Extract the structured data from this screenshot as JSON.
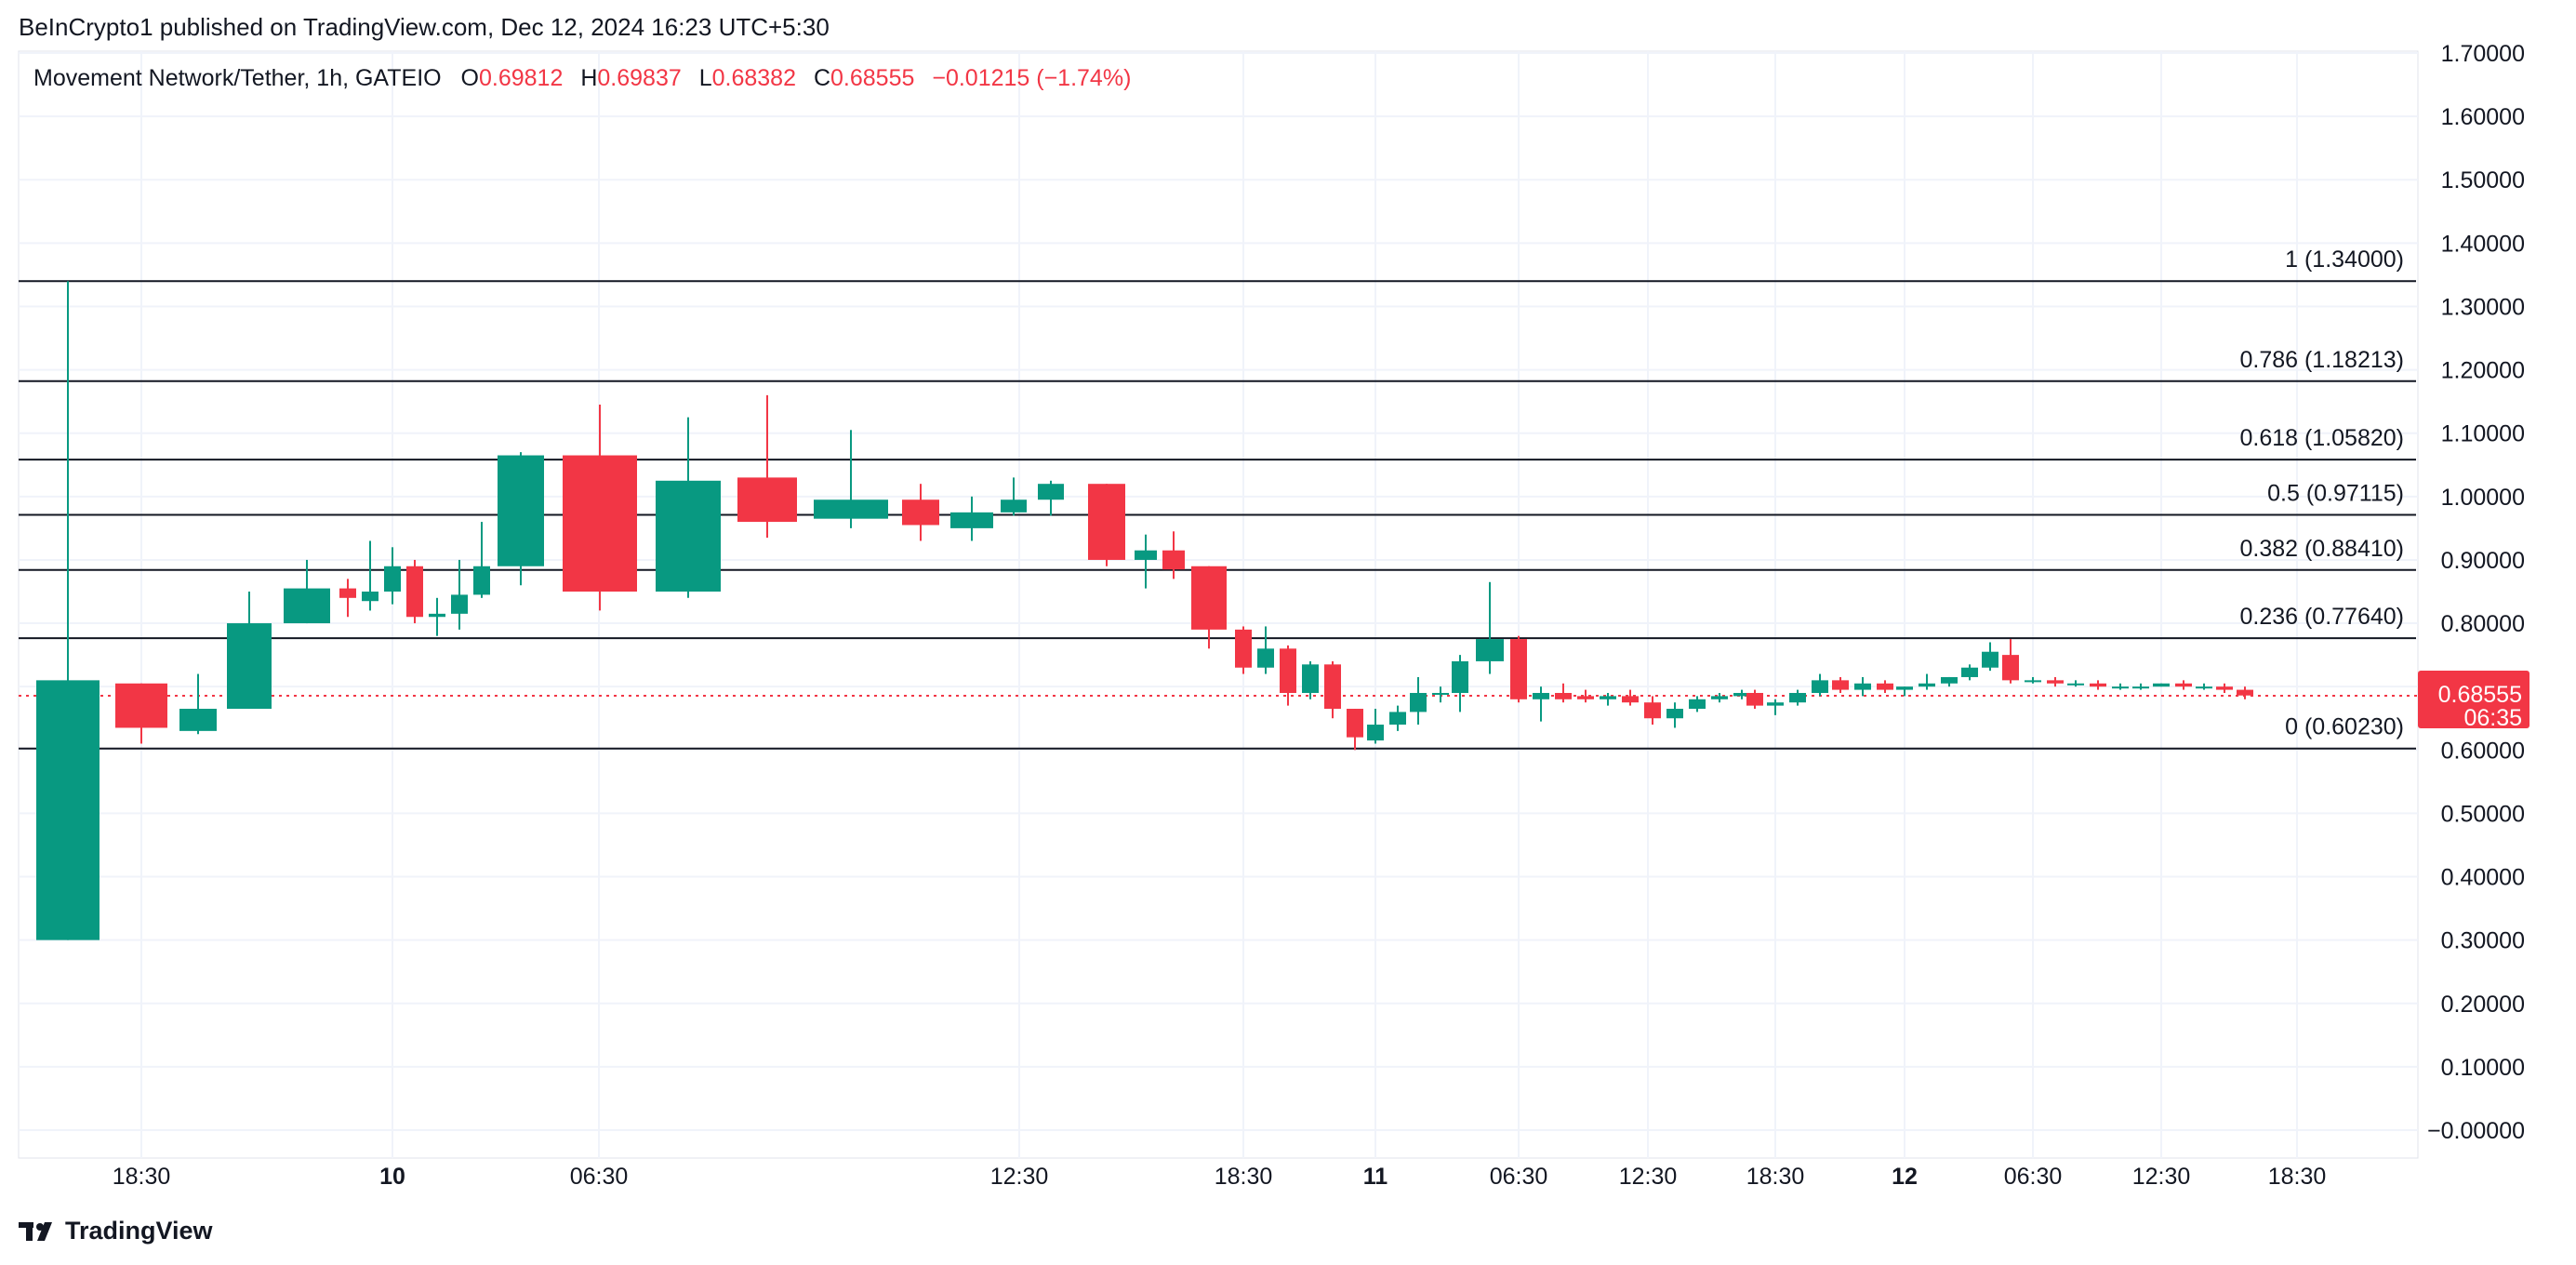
{
  "header": {
    "publisher": "BeInCrypto1 published on TradingView.com, Dec 12, 2024 16:23 UTC+5:30"
  },
  "legend": {
    "symbol": "Movement Network/Tether, 1h, GATEIO",
    "open_label": "O",
    "open": "0.69812",
    "high_label": "H",
    "high": "0.69837",
    "low_label": "L",
    "low": "0.68382",
    "close_label": "C",
    "close": "0.68555",
    "change": "−0.01215 (−1.74%)"
  },
  "price_tag": {
    "value": "0.68555",
    "countdown": "06:35"
  },
  "brand": {
    "name": "TradingView"
  },
  "colors": {
    "up": "#089981",
    "down": "#f23645",
    "fib_line": "#131722",
    "grid": "#f0f3fa"
  },
  "chart_data": {
    "type": "candlestick",
    "interval": "1h",
    "ylim": [
      0,
      1.7
    ],
    "y_ticks": [
      "1.70000",
      "1.60000",
      "1.50000",
      "1.40000",
      "1.30000",
      "1.20000",
      "1.10000",
      "1.00000",
      "0.90000",
      "0.80000",
      "0.70000",
      "0.60000",
      "0.50000",
      "0.40000",
      "0.30000",
      "0.20000",
      "0.10000",
      "−0.00000"
    ],
    "x_ticks": [
      "18:30",
      "10",
      "06:30",
      "12:30",
      "18:30",
      "11",
      "06:30",
      "12:30",
      "18:30",
      "12",
      "06:30",
      "12:30",
      "18:30"
    ],
    "x_tick_bold": [
      false,
      true,
      false,
      false,
      false,
      true,
      false,
      false,
      false,
      true,
      false,
      false,
      false
    ],
    "fib_levels": [
      {
        "label": "1 (1.34000)",
        "price": 1.34
      },
      {
        "label": "0.786 (1.18213)",
        "price": 1.18213
      },
      {
        "label": "0.618 (1.05820)",
        "price": 1.0582
      },
      {
        "label": "0.5 (0.97115)",
        "price": 0.97115
      },
      {
        "label": "0.382 (0.88410)",
        "price": 0.8841
      },
      {
        "label": "0.236 (0.77640)",
        "price": 0.7764
      },
      {
        "label": "0 (0.60230)",
        "price": 0.6023
      }
    ],
    "current_price": 0.68555,
    "candles": [
      {
        "o": 0.3,
        "h": 1.34,
        "l": 0.3,
        "c": 0.71
      },
      {
        "o": 0.705,
        "h": 0.705,
        "l": 0.61,
        "c": 0.635
      },
      {
        "o": 0.63,
        "h": 0.72,
        "l": 0.625,
        "c": 0.665
      },
      {
        "o": 0.665,
        "h": 0.85,
        "l": 0.665,
        "c": 0.8
      },
      {
        "o": 0.8,
        "h": 0.9,
        "l": 0.8,
        "c": 0.855
      },
      {
        "o": 0.855,
        "h": 0.87,
        "l": 0.81,
        "c": 0.84
      },
      {
        "o": 0.835,
        "h": 0.93,
        "l": 0.82,
        "c": 0.85
      },
      {
        "o": 0.85,
        "h": 0.92,
        "l": 0.83,
        "c": 0.89
      },
      {
        "o": 0.89,
        "h": 0.9,
        "l": 0.8,
        "c": 0.81
      },
      {
        "o": 0.81,
        "h": 0.84,
        "l": 0.78,
        "c": 0.815
      },
      {
        "o": 0.815,
        "h": 0.9,
        "l": 0.79,
        "c": 0.845
      },
      {
        "o": 0.845,
        "h": 0.96,
        "l": 0.84,
        "c": 0.89
      },
      {
        "o": 0.89,
        "h": 1.07,
        "l": 0.86,
        "c": 1.065
      },
      {
        "o": 1.065,
        "h": 1.145,
        "l": 0.82,
        "c": 0.85
      },
      {
        "o": 0.85,
        "h": 1.125,
        "l": 0.84,
        "c": 1.025
      },
      {
        "o": 1.03,
        "h": 1.16,
        "l": 0.935,
        "c": 0.96
      },
      {
        "o": 0.965,
        "h": 1.105,
        "l": 0.95,
        "c": 0.995
      },
      {
        "o": 0.995,
        "h": 1.02,
        "l": 0.93,
        "c": 0.955
      },
      {
        "o": 0.95,
        "h": 1.0,
        "l": 0.93,
        "c": 0.975
      },
      {
        "o": 0.975,
        "h": 1.03,
        "l": 0.97,
        "c": 0.995
      },
      {
        "o": 0.995,
        "h": 1.025,
        "l": 0.97,
        "c": 1.02
      },
      {
        "o": 1.02,
        "h": 1.02,
        "l": 0.89,
        "c": 0.9
      },
      {
        "o": 0.9,
        "h": 0.94,
        "l": 0.855,
        "c": 0.915
      },
      {
        "o": 0.915,
        "h": 0.945,
        "l": 0.87,
        "c": 0.885
      },
      {
        "o": 0.89,
        "h": 0.89,
        "l": 0.76,
        "c": 0.79
      },
      {
        "o": 0.79,
        "h": 0.795,
        "l": 0.72,
        "c": 0.73
      },
      {
        "o": 0.73,
        "h": 0.795,
        "l": 0.72,
        "c": 0.76
      },
      {
        "o": 0.76,
        "h": 0.765,
        "l": 0.67,
        "c": 0.69
      },
      {
        "o": 0.69,
        "h": 0.74,
        "l": 0.68,
        "c": 0.735
      },
      {
        "o": 0.735,
        "h": 0.74,
        "l": 0.65,
        "c": 0.665
      },
      {
        "o": 0.665,
        "h": 0.665,
        "l": 0.6,
        "c": 0.62
      },
      {
        "o": 0.615,
        "h": 0.665,
        "l": 0.61,
        "c": 0.64
      },
      {
        "o": 0.64,
        "h": 0.67,
        "l": 0.63,
        "c": 0.66
      },
      {
        "o": 0.66,
        "h": 0.715,
        "l": 0.64,
        "c": 0.69
      },
      {
        "o": 0.69,
        "h": 0.7,
        "l": 0.675,
        "c": 0.69
      },
      {
        "o": 0.69,
        "h": 0.75,
        "l": 0.66,
        "c": 0.74
      },
      {
        "o": 0.74,
        "h": 0.865,
        "l": 0.72,
        "c": 0.775
      },
      {
        "o": 0.775,
        "h": 0.78,
        "l": 0.675,
        "c": 0.68
      },
      {
        "o": 0.68,
        "h": 0.7,
        "l": 0.645,
        "c": 0.69
      },
      {
        "o": 0.69,
        "h": 0.705,
        "l": 0.675,
        "c": 0.68
      },
      {
        "o": 0.685,
        "h": 0.695,
        "l": 0.675,
        "c": 0.68
      },
      {
        "o": 0.68,
        "h": 0.69,
        "l": 0.67,
        "c": 0.685
      },
      {
        "o": 0.685,
        "h": 0.695,
        "l": 0.67,
        "c": 0.675
      },
      {
        "o": 0.675,
        "h": 0.685,
        "l": 0.64,
        "c": 0.65
      },
      {
        "o": 0.65,
        "h": 0.675,
        "l": 0.635,
        "c": 0.665
      },
      {
        "o": 0.665,
        "h": 0.685,
        "l": 0.66,
        "c": 0.68
      },
      {
        "o": 0.68,
        "h": 0.69,
        "l": 0.675,
        "c": 0.685
      },
      {
        "o": 0.685,
        "h": 0.695,
        "l": 0.68,
        "c": 0.69
      },
      {
        "o": 0.69,
        "h": 0.695,
        "l": 0.665,
        "c": 0.67
      },
      {
        "o": 0.67,
        "h": 0.68,
        "l": 0.655,
        "c": 0.675
      },
      {
        "o": 0.675,
        "h": 0.695,
        "l": 0.67,
        "c": 0.69
      },
      {
        "o": 0.69,
        "h": 0.72,
        "l": 0.685,
        "c": 0.71
      },
      {
        "o": 0.71,
        "h": 0.715,
        "l": 0.69,
        "c": 0.695
      },
      {
        "o": 0.695,
        "h": 0.715,
        "l": 0.685,
        "c": 0.705
      },
      {
        "o": 0.705,
        "h": 0.71,
        "l": 0.69,
        "c": 0.695
      },
      {
        "o": 0.695,
        "h": 0.7,
        "l": 0.685,
        "c": 0.7
      },
      {
        "o": 0.7,
        "h": 0.72,
        "l": 0.695,
        "c": 0.705
      },
      {
        "o": 0.705,
        "h": 0.715,
        "l": 0.7,
        "c": 0.715
      },
      {
        "o": 0.715,
        "h": 0.735,
        "l": 0.71,
        "c": 0.73
      },
      {
        "o": 0.73,
        "h": 0.77,
        "l": 0.725,
        "c": 0.755
      },
      {
        "o": 0.75,
        "h": 0.775,
        "l": 0.705,
        "c": 0.71
      },
      {
        "o": 0.71,
        "h": 0.715,
        "l": 0.705,
        "c": 0.71
      },
      {
        "o": 0.71,
        "h": 0.715,
        "l": 0.7,
        "c": 0.705
      },
      {
        "o": 0.705,
        "h": 0.71,
        "l": 0.7,
        "c": 0.705
      },
      {
        "o": 0.705,
        "h": 0.71,
        "l": 0.695,
        "c": 0.7
      },
      {
        "o": 0.7,
        "h": 0.705,
        "l": 0.695,
        "c": 0.7
      },
      {
        "o": 0.7,
        "h": 0.705,
        "l": 0.695,
        "c": 0.7
      },
      {
        "o": 0.7,
        "h": 0.705,
        "l": 0.7,
        "c": 0.705
      },
      {
        "o": 0.705,
        "h": 0.71,
        "l": 0.695,
        "c": 0.7
      },
      {
        "o": 0.7,
        "h": 0.705,
        "l": 0.695,
        "c": 0.7
      },
      {
        "o": 0.7,
        "h": 0.705,
        "l": 0.69,
        "c": 0.695
      },
      {
        "o": 0.695,
        "h": 0.7,
        "l": 0.68,
        "c": 0.686
      }
    ]
  }
}
